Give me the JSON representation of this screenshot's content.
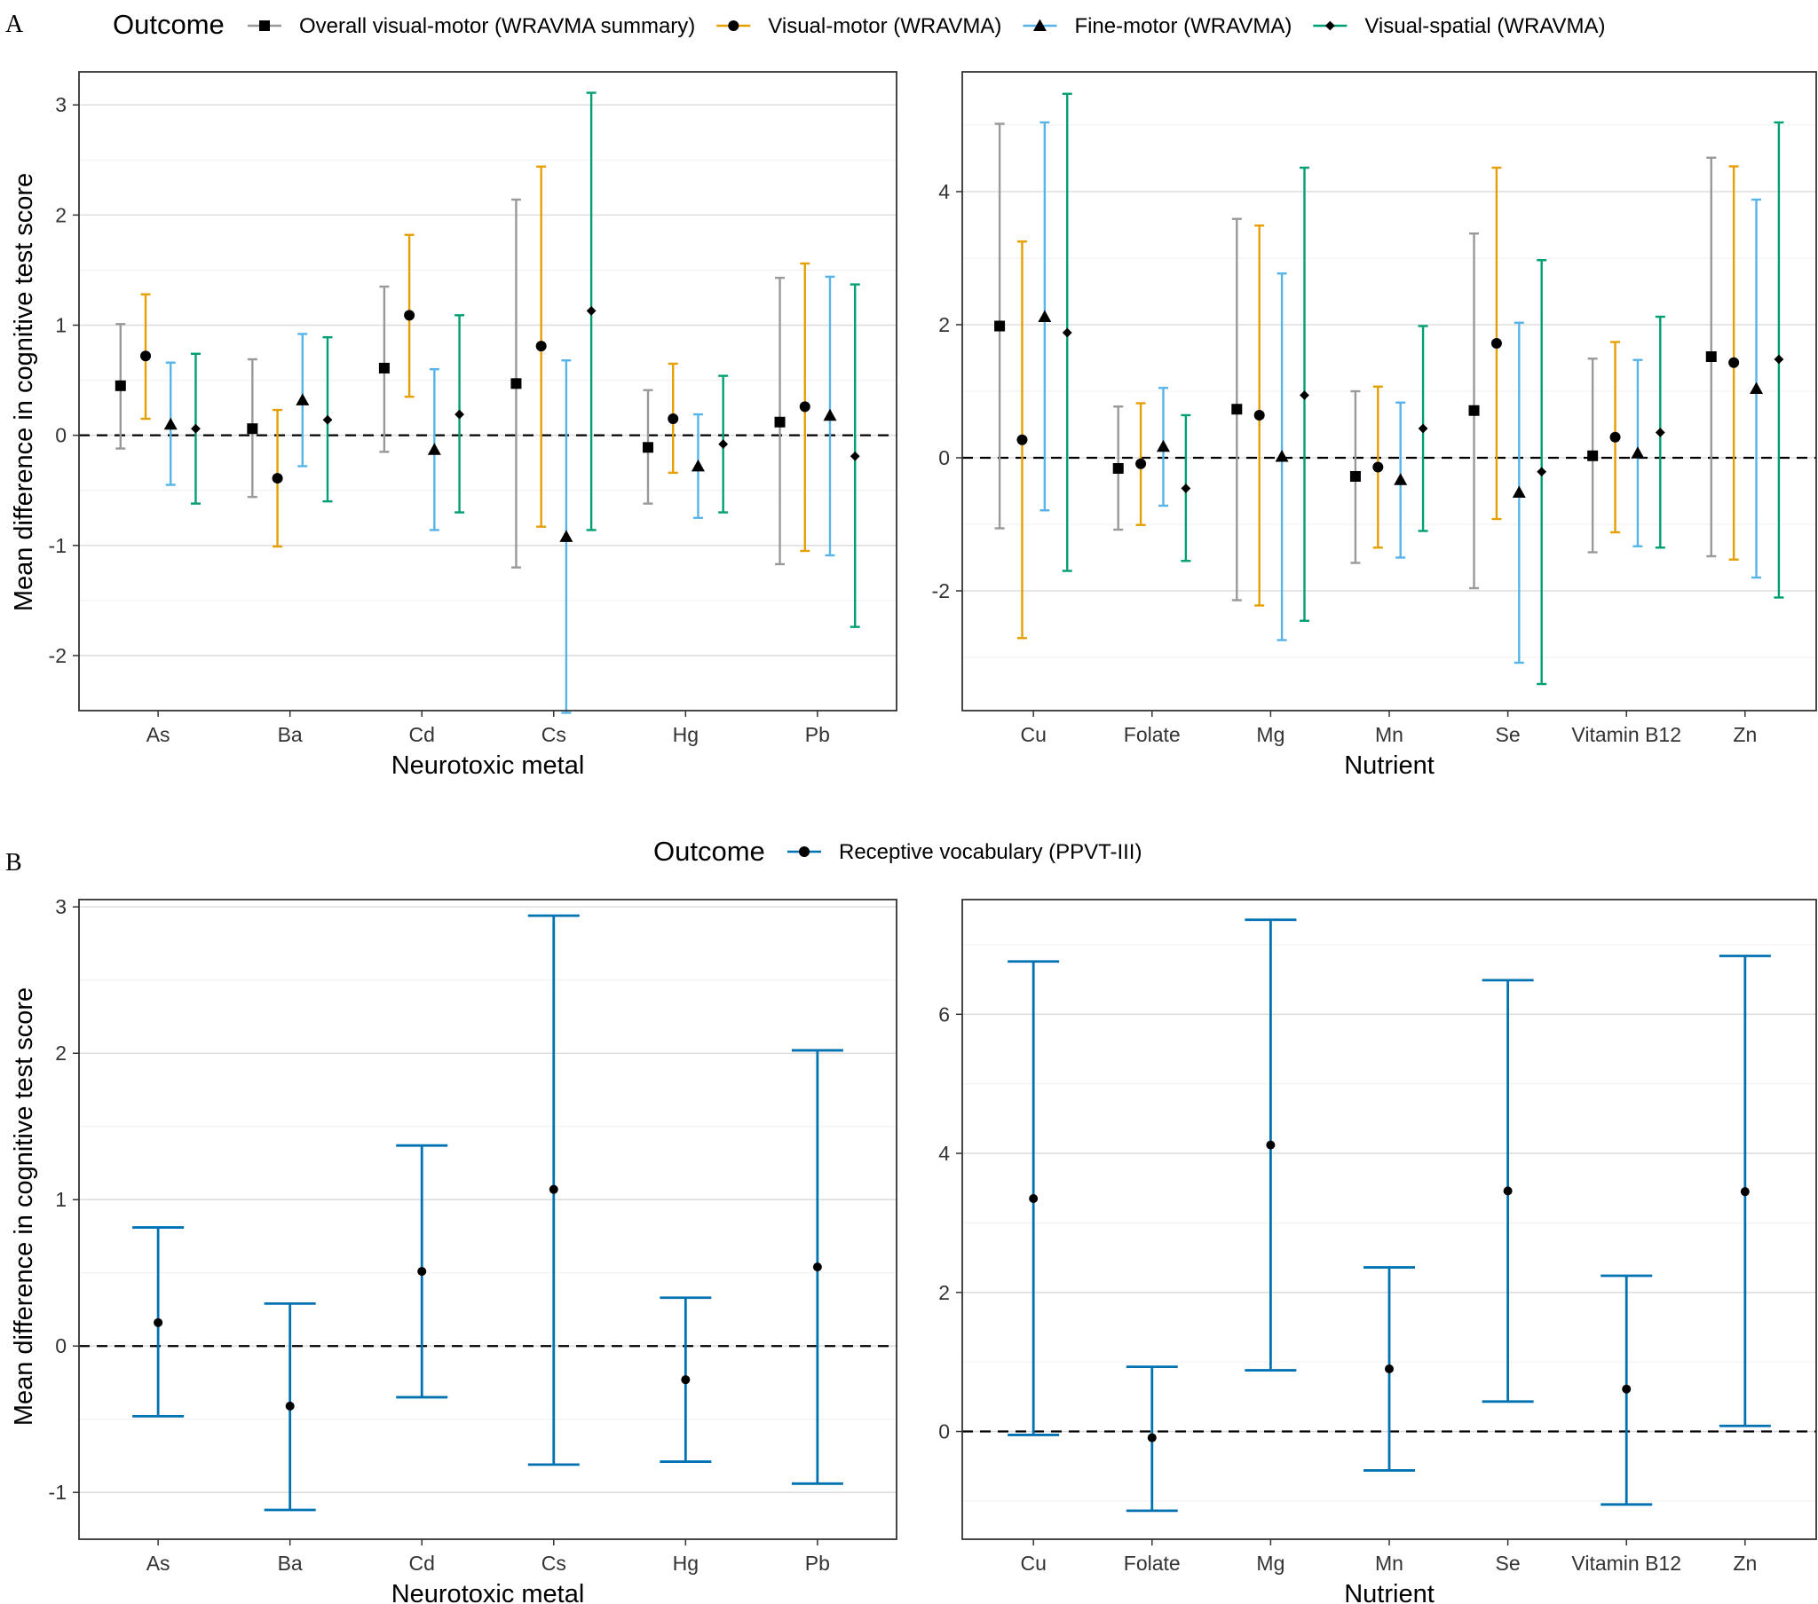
{
  "figure": {
    "panel_a_label": "A",
    "panel_b_label": "B",
    "y_axis_label": "Mean difference in cognitive test score"
  },
  "legend_a": {
    "title": "Outcome",
    "items": [
      {
        "label": "Overall visual-motor (WRAVMA summary)",
        "color": "#999999",
        "shape": "square"
      },
      {
        "label": "Visual-motor (WRAVMA)",
        "color": "#E69F00",
        "shape": "circle"
      },
      {
        "label": "Fine-motor (WRAVMA)",
        "color": "#56B4E9",
        "shape": "triangle"
      },
      {
        "label": "Visual-spatial (WRAVMA)",
        "color": "#009E73",
        "shape": "diamond"
      }
    ]
  },
  "legend_b": {
    "title": "Outcome",
    "items": [
      {
        "label": "Receptive vocabulary (PPVT-III)",
        "color": "#0072B2",
        "shape": "circle"
      }
    ]
  },
  "chart_data": [
    {
      "id": "A-metals",
      "type": "errorbar",
      "xlabel": "Neurotoxic metal",
      "ylabel": "Mean difference in cognitive test score",
      "categories": [
        "As",
        "Ba",
        "Cd",
        "Cs",
        "Hg",
        "Pb"
      ],
      "ylim": [
        -2.5,
        3.3
      ],
      "yticks": [
        -2,
        -1,
        0,
        1,
        2,
        3
      ],
      "series": [
        {
          "name": "Overall visual-motor (WRAVMA summary)",
          "color": "#999999",
          "shape": "square",
          "est": [
            0.45,
            0.06,
            0.61,
            0.47,
            -0.11,
            0.12
          ],
          "lo": [
            -0.12,
            -0.56,
            -0.15,
            -1.2,
            -0.62,
            -1.17
          ],
          "hi": [
            1.01,
            0.69,
            1.35,
            2.14,
            0.41,
            1.43
          ]
        },
        {
          "name": "Visual-motor (WRAVMA)",
          "color": "#E69F00",
          "shape": "circle",
          "est": [
            0.72,
            -0.39,
            1.09,
            0.81,
            0.15,
            0.26
          ],
          "lo": [
            0.15,
            -1.01,
            0.35,
            -0.83,
            -0.34,
            -1.05
          ],
          "hi": [
            1.28,
            0.23,
            1.82,
            2.44,
            0.65,
            1.56
          ]
        },
        {
          "name": "Fine-motor (WRAVMA)",
          "color": "#56B4E9",
          "shape": "triangle",
          "est": [
            0.1,
            0.32,
            -0.13,
            -0.92,
            -0.28,
            0.18
          ],
          "lo": [
            -0.45,
            -0.28,
            -0.86,
            -2.52,
            -0.75,
            -1.09
          ],
          "hi": [
            0.66,
            0.92,
            0.6,
            0.68,
            0.19,
            1.44
          ]
        },
        {
          "name": "Visual-spatial (WRAVMA)",
          "color": "#009E73",
          "shape": "diamond",
          "est": [
            0.06,
            0.14,
            0.19,
            1.13,
            -0.08,
            -0.19
          ],
          "lo": [
            -0.62,
            -0.6,
            -0.7,
            -0.86,
            -0.7,
            -1.74
          ],
          "hi": [
            0.74,
            0.89,
            1.09,
            3.11,
            0.54,
            1.37
          ]
        }
      ]
    },
    {
      "id": "A-nutrients",
      "type": "errorbar",
      "xlabel": "Nutrient",
      "ylabel": "",
      "categories": [
        "Cu",
        "Folate",
        "Mg",
        "Mn",
        "Se",
        "Vitamin B12",
        "Zn"
      ],
      "ylim": [
        -3.8,
        5.8
      ],
      "yticks": [
        -2,
        0,
        2,
        4
      ],
      "series": [
        {
          "name": "Overall visual-motor (WRAVMA summary)",
          "color": "#999999",
          "shape": "square",
          "est": [
            1.98,
            -0.16,
            0.73,
            -0.28,
            0.71,
            0.03,
            1.52
          ],
          "lo": [
            -1.06,
            -1.08,
            -2.14,
            -1.58,
            -1.96,
            -1.42,
            -1.48
          ],
          "hi": [
            5.02,
            0.77,
            3.59,
            1.0,
            3.37,
            1.49,
            4.51
          ]
        },
        {
          "name": "Visual-motor (WRAVMA)",
          "color": "#E69F00",
          "shape": "circle",
          "est": [
            0.27,
            -0.09,
            0.64,
            -0.14,
            1.72,
            0.31,
            1.43
          ],
          "lo": [
            -2.71,
            -1.01,
            -2.22,
            -1.35,
            -0.92,
            -1.12,
            -1.53
          ],
          "hi": [
            3.25,
            0.82,
            3.49,
            1.07,
            4.36,
            1.74,
            4.38
          ]
        },
        {
          "name": "Fine-motor (WRAVMA)",
          "color": "#56B4E9",
          "shape": "triangle",
          "est": [
            2.12,
            0.17,
            0.02,
            -0.33,
            -0.52,
            0.07,
            1.04
          ],
          "lo": [
            -0.79,
            -0.72,
            -2.74,
            -1.5,
            -3.08,
            -1.33,
            -1.8
          ],
          "hi": [
            5.04,
            1.05,
            2.77,
            0.83,
            2.03,
            1.47,
            3.88
          ]
        },
        {
          "name": "Visual-spatial (WRAVMA)",
          "color": "#009E73",
          "shape": "diamond",
          "est": [
            1.88,
            -0.46,
            0.94,
            0.44,
            -0.21,
            0.38,
            1.48
          ],
          "lo": [
            -1.7,
            -1.55,
            -2.45,
            -1.1,
            -3.4,
            -1.35,
            -2.1
          ],
          "hi": [
            5.47,
            0.64,
            4.36,
            1.98,
            2.97,
            2.12,
            5.04
          ]
        }
      ]
    },
    {
      "id": "B-metals",
      "type": "errorbar",
      "xlabel": "Neurotoxic metal",
      "ylabel": "Mean difference in cognitive test score",
      "categories": [
        "As",
        "Ba",
        "Cd",
        "Cs",
        "Hg",
        "Pb"
      ],
      "ylim": [
        -1.32,
        3.05
      ],
      "yticks": [
        -1,
        0,
        1,
        2,
        3
      ],
      "series": [
        {
          "name": "Receptive vocabulary (PPVT-III)",
          "color": "#0072B2",
          "shape": "circle",
          "est": [
            0.16,
            -0.41,
            0.51,
            1.07,
            -0.23,
            0.54
          ],
          "lo": [
            -0.48,
            -1.12,
            -0.35,
            -0.81,
            -0.79,
            -0.94
          ],
          "hi": [
            0.81,
            0.29,
            1.37,
            2.94,
            0.33,
            2.02
          ]
        }
      ]
    },
    {
      "id": "B-nutrients",
      "type": "errorbar",
      "xlabel": "Nutrient",
      "ylabel": "",
      "categories": [
        "Cu",
        "Folate",
        "Mg",
        "Mn",
        "Se",
        "Vitamin B12",
        "Zn"
      ],
      "ylim": [
        -1.55,
        7.65
      ],
      "yticks": [
        0,
        2,
        4,
        6
      ],
      "series": [
        {
          "name": "Receptive vocabulary (PPVT-III)",
          "color": "#0072B2",
          "shape": "circle",
          "est": [
            3.35,
            -0.09,
            4.12,
            0.9,
            3.46,
            0.61,
            3.45
          ],
          "lo": [
            -0.05,
            -1.14,
            0.88,
            -0.56,
            0.43,
            -1.05,
            0.08
          ],
          "hi": [
            6.76,
            0.93,
            7.36,
            2.36,
            6.49,
            2.24,
            6.84
          ]
        }
      ]
    }
  ]
}
